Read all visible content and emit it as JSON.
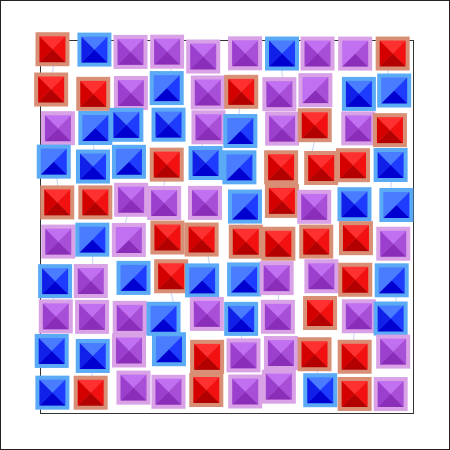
{
  "palette": {
    "red": {
      "frame": "#d88f75",
      "light": "#ff3030",
      "mid": "#f21010",
      "dark": "#b30000",
      "deep": "#d40000"
    },
    "purple": {
      "frame": "#d9a1e6",
      "light": "#c070f0",
      "mid": "#a84fd8",
      "dark": "#8a2db8",
      "deep": "#9b3fcf"
    },
    "blue": {
      "frame": "#5aaaf5",
      "light": "#4a7cff",
      "mid": "#1e3cff",
      "dark": "#0000d0",
      "deep": "#1020e8"
    }
  },
  "board": {
    "description_colors": [
      "red",
      "purple",
      "blue"
    ],
    "tiles": [
      {
        "color": "red",
        "shade": "dark"
      },
      {
        "color": "blue",
        "shade": "mid"
      },
      {
        "color": "purple",
        "shade": "mid"
      },
      {
        "color": "purple",
        "shade": "mid"
      },
      {
        "color": "purple",
        "shade": "mid"
      },
      {
        "color": "purple",
        "shade": "mid"
      },
      {
        "color": "blue",
        "shade": "dark"
      },
      {
        "color": "purple",
        "shade": "mid"
      },
      {
        "color": "purple",
        "shade": "light"
      },
      {
        "color": "red",
        "shade": "dark"
      },
      {
        "color": "red",
        "shade": "mid"
      },
      {
        "color": "red",
        "shade": "mid"
      },
      {
        "color": "purple",
        "shade": "mid"
      },
      {
        "color": "blue",
        "shade": "light"
      },
      {
        "color": "purple",
        "shade": "mid"
      },
      {
        "color": "red",
        "shade": "mid"
      },
      {
        "color": "purple",
        "shade": "mid"
      },
      {
        "color": "purple",
        "shade": "light"
      },
      {
        "color": "blue",
        "shade": "mid"
      },
      {
        "color": "blue",
        "shade": "light"
      },
      {
        "color": "purple",
        "shade": "mid"
      },
      {
        "color": "blue",
        "shade": "light"
      },
      {
        "color": "blue",
        "shade": "mid"
      },
      {
        "color": "blue",
        "shade": "mid"
      },
      {
        "color": "purple",
        "shade": "mid"
      },
      {
        "color": "blue",
        "shade": "light"
      },
      {
        "color": "purple",
        "shade": "mid"
      },
      {
        "color": "red",
        "shade": "mid"
      },
      {
        "color": "purple",
        "shade": "mid"
      },
      {
        "color": "red",
        "shade": "mid"
      },
      {
        "color": "blue",
        "shade": "light"
      },
      {
        "color": "blue",
        "shade": "mid"
      },
      {
        "color": "blue",
        "shade": "light"
      },
      {
        "color": "red",
        "shade": "mid"
      },
      {
        "color": "blue",
        "shade": "dark"
      },
      {
        "color": "blue",
        "shade": "light"
      },
      {
        "color": "red",
        "shade": "mid"
      },
      {
        "color": "red",
        "shade": "mid"
      },
      {
        "color": "red",
        "shade": "mid"
      },
      {
        "color": "blue",
        "shade": "dark"
      },
      {
        "color": "red",
        "shade": "mid"
      },
      {
        "color": "red",
        "shade": "mid"
      },
      {
        "color": "purple",
        "shade": "mid"
      },
      {
        "color": "purple",
        "shade": "mid"
      },
      {
        "color": "purple",
        "shade": "mid"
      },
      {
        "color": "blue",
        "shade": "light"
      },
      {
        "color": "red",
        "shade": "mid"
      },
      {
        "color": "purple",
        "shade": "mid"
      },
      {
        "color": "blue",
        "shade": "mid"
      },
      {
        "color": "blue",
        "shade": "light"
      },
      {
        "color": "purple",
        "shade": "mid"
      },
      {
        "color": "blue",
        "shade": "light"
      },
      {
        "color": "purple",
        "shade": "light"
      },
      {
        "color": "red",
        "shade": "mid"
      },
      {
        "color": "red",
        "shade": "mid"
      },
      {
        "color": "red",
        "shade": "mid"
      },
      {
        "color": "red",
        "shade": "mid"
      },
      {
        "color": "red",
        "shade": "mid"
      },
      {
        "color": "red",
        "shade": "mid"
      },
      {
        "color": "purple",
        "shade": "mid"
      },
      {
        "color": "blue",
        "shade": "mid"
      },
      {
        "color": "purple",
        "shade": "mid"
      },
      {
        "color": "blue",
        "shade": "light"
      },
      {
        "color": "red",
        "shade": "mid"
      },
      {
        "color": "blue",
        "shade": "light"
      },
      {
        "color": "blue",
        "shade": "light"
      },
      {
        "color": "purple",
        "shade": "mid"
      },
      {
        "color": "purple",
        "shade": "mid"
      },
      {
        "color": "red",
        "shade": "mid"
      },
      {
        "color": "blue",
        "shade": "light"
      },
      {
        "color": "purple",
        "shade": "mid"
      },
      {
        "color": "purple",
        "shade": "mid"
      },
      {
        "color": "purple",
        "shade": "mid"
      },
      {
        "color": "blue",
        "shade": "light"
      },
      {
        "color": "purple",
        "shade": "mid"
      },
      {
        "color": "blue",
        "shade": "mid"
      },
      {
        "color": "purple",
        "shade": "mid"
      },
      {
        "color": "red",
        "shade": "mid"
      },
      {
        "color": "purple",
        "shade": "mid"
      },
      {
        "color": "blue",
        "shade": "mid"
      },
      {
        "color": "blue",
        "shade": "mid"
      },
      {
        "color": "blue",
        "shade": "dark"
      },
      {
        "color": "purple",
        "shade": "mid"
      },
      {
        "color": "blue",
        "shade": "light"
      },
      {
        "color": "red",
        "shade": "mid"
      },
      {
        "color": "purple",
        "shade": "mid"
      },
      {
        "color": "purple",
        "shade": "mid"
      },
      {
        "color": "red",
        "shade": "mid"
      },
      {
        "color": "red",
        "shade": "mid"
      },
      {
        "color": "purple",
        "shade": "mid"
      },
      {
        "color": "blue",
        "shade": "mid"
      },
      {
        "color": "red",
        "shade": "mid"
      },
      {
        "color": "purple",
        "shade": "mid"
      },
      {
        "color": "purple",
        "shade": "mid"
      },
      {
        "color": "red",
        "shade": "mid"
      },
      {
        "color": "purple",
        "shade": "mid"
      },
      {
        "color": "purple",
        "shade": "mid"
      },
      {
        "color": "blue",
        "shade": "mid"
      },
      {
        "color": "red",
        "shade": "mid"
      },
      {
        "color": "purple",
        "shade": "mid"
      }
    ]
  }
}
